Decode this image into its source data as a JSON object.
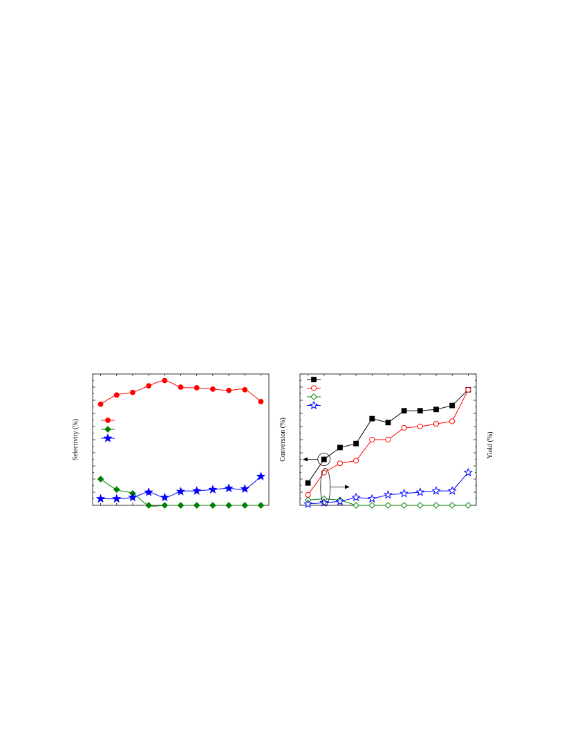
{
  "chart_data": [
    {
      "type": "line",
      "ylabel": "Selectivity (%)",
      "y2label": "",
      "xlabel": "",
      "x": [
        1,
        2,
        3,
        4,
        5,
        6,
        7,
        8,
        9,
        10,
        11
      ],
      "ylim": [
        0,
        100
      ],
      "legend_position": "middle-left",
      "series": [
        {
          "color": "#ff0000",
          "marker": "circle",
          "filled": true,
          "values": [
            77,
            84,
            86,
            91,
            95,
            90,
            89.5,
            88.5,
            87.5,
            88,
            79
          ],
          "axis": "left"
        },
        {
          "color": "#008000",
          "marker": "diamond",
          "filled": true,
          "values": [
            20,
            12,
            9,
            0,
            0,
            0,
            0,
            0,
            0,
            0,
            0
          ],
          "axis": "left"
        },
        {
          "color": "#0000ff",
          "marker": "star",
          "filled": true,
          "values": [
            5,
            5,
            6,
            10,
            6,
            10.5,
            11,
            12,
            13,
            12.5,
            22
          ],
          "axis": "left"
        }
      ]
    },
    {
      "type": "line",
      "ylabel": "Conversion (%)",
      "y2label": "Yield (%)",
      "xlabel": "",
      "x": [
        1,
        2,
        3,
        4,
        5,
        6,
        7,
        8,
        9,
        10,
        11
      ],
      "ylim": [
        0,
        100
      ],
      "y2lim": [
        0,
        100
      ],
      "legend_position": "top-left",
      "annotations": [
        {
          "kind": "circle-with-arrow",
          "direction": "left",
          "points_to": "left-axis"
        },
        {
          "kind": "ellipse-with-arrow",
          "direction": "right",
          "points_to": "right-axis"
        }
      ],
      "series": [
        {
          "color": "#000000",
          "marker": "square",
          "filled": true,
          "axis": "left",
          "values": [
            17,
            35,
            44,
            47,
            66,
            63,
            72,
            72,
            73,
            76,
            88
          ]
        },
        {
          "color": "#ff0000",
          "marker": "circle",
          "filled": false,
          "axis": "right",
          "values": [
            8,
            25,
            32,
            34,
            50,
            50,
            59,
            60,
            62,
            64,
            88
          ]
        },
        {
          "color": "#008000",
          "marker": "diamond",
          "filled": false,
          "axis": "right",
          "values": [
            4,
            5,
            4,
            0,
            0,
            0,
            0,
            0,
            0,
            0,
            0
          ]
        },
        {
          "color": "#0000ff",
          "marker": "star",
          "filled": false,
          "axis": "right",
          "values": [
            1,
            2,
            3,
            6,
            5,
            8,
            9,
            10,
            11,
            11,
            25
          ]
        }
      ]
    }
  ]
}
